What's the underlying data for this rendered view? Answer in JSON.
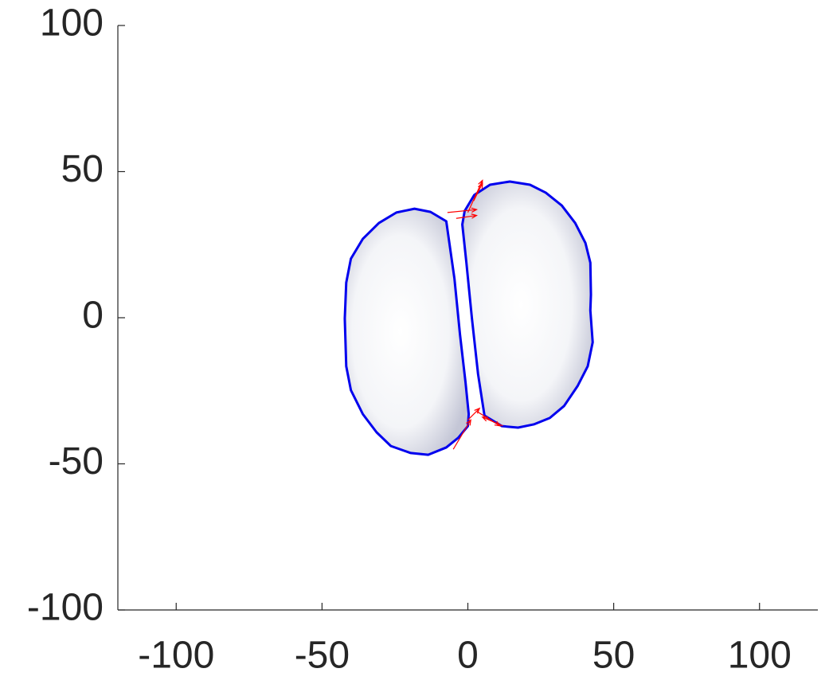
{
  "chart_data": {
    "type": "line",
    "xlim": [
      -120,
      120
    ],
    "ylim": [
      -100,
      100
    ],
    "xticks": [
      -100,
      -50,
      0,
      50,
      100
    ],
    "yticks": [
      -100,
      -50,
      0,
      50,
      100
    ],
    "grid": false,
    "closed": true,
    "series": [
      {
        "color": "#0000ee",
        "x": [
          -7.4,
          -12.8,
          -18.3,
          -24.5,
          -30.5,
          -36.0,
          -40.1,
          -41.7,
          -42.2,
          -41.7,
          -40.1,
          -36.0,
          -31.3,
          -26.4,
          -19.6,
          -13.6,
          -7.4,
          -3.3,
          0,
          0.3,
          -0.8,
          -2.7,
          -4.6
        ],
        "values": [
          33.0,
          36.2,
          37.3,
          36.0,
          32.4,
          27.0,
          20.2,
          12.0,
          -0.3,
          -16.6,
          -24.8,
          -33.0,
          -39.2,
          -43.9,
          -46.3,
          -46.9,
          -44.4,
          -41.1,
          -37.1,
          -33.0,
          -22.1,
          -5.7,
          13.4
        ]
      },
      {
        "color": "#0000ee",
        "x": [
          -1.9,
          -1.1,
          2.2,
          7.6,
          14.4,
          21.3,
          26.7,
          32.2,
          36.8,
          40.3,
          42.0,
          42.2,
          42.0,
          42.8,
          41.1,
          37.6,
          33.0,
          28.1,
          22.6,
          17.2,
          11.7,
          5.7,
          3.5,
          1.4,
          -0.5
        ],
        "values": [
          31.9,
          36.5,
          42.0,
          45.5,
          46.6,
          45.5,
          42.8,
          38.4,
          32.4,
          25.6,
          18.8,
          7.9,
          2.5,
          -8.4,
          -16.6,
          -23.4,
          -30.2,
          -34.3,
          -36.5,
          -37.6,
          -37.1,
          -33.5,
          -19.3,
          -0.3,
          18.8
        ]
      }
    ],
    "arrows": {
      "color": "#ff0000",
      "x": [
        -7,
        -4,
        0,
        2,
        -5,
        0,
        12,
        3
      ],
      "y": [
        36,
        34,
        36,
        40,
        -45,
        -35,
        -37,
        -32
      ],
      "u": [
        10,
        7,
        5,
        3,
        6,
        4,
        -7,
        8
      ],
      "v": [
        1,
        1,
        11,
        6,
        10,
        4,
        3,
        -5
      ]
    }
  }
}
